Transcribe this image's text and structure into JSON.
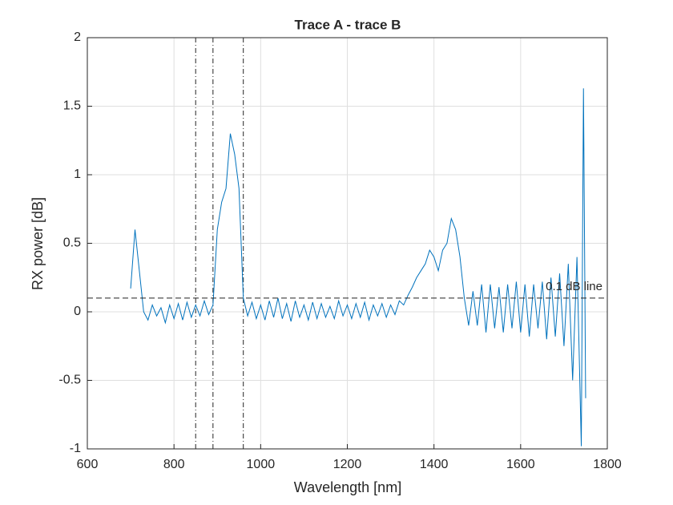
{
  "chart_data": {
    "type": "line",
    "title": "Trace A - trace B",
    "x_label": "Wavelength [nm]",
    "y_label": "RX power [dB]",
    "x": [
      700,
      710,
      720,
      730,
      740,
      750,
      760,
      770,
      780,
      790,
      800,
      810,
      820,
      830,
      840,
      850,
      860,
      870,
      880,
      890,
      900,
      910,
      920,
      930,
      940,
      950,
      960,
      970,
      980,
      990,
      1000,
      1010,
      1020,
      1030,
      1040,
      1050,
      1060,
      1070,
      1080,
      1090,
      1100,
      1110,
      1120,
      1130,
      1140,
      1150,
      1160,
      1170,
      1180,
      1190,
      1200,
      1210,
      1220,
      1230,
      1240,
      1250,
      1260,
      1270,
      1280,
      1290,
      1300,
      1310,
      1320,
      1330,
      1340,
      1350,
      1360,
      1370,
      1380,
      1390,
      1400,
      1410,
      1420,
      1430,
      1440,
      1450,
      1460,
      1470,
      1480,
      1490,
      1500,
      1510,
      1520,
      1530,
      1540,
      1550,
      1560,
      1570,
      1580,
      1590,
      1600,
      1610,
      1620,
      1630,
      1640,
      1650,
      1660,
      1670,
      1680,
      1690,
      1700,
      1710,
      1720,
      1730,
      1740,
      1745,
      1750
    ],
    "series": [
      {
        "name": "Trace A - trace B",
        "color": "#0072bd",
        "values": [
          0.17,
          0.6,
          0.3,
          0.0,
          -0.06,
          0.05,
          -0.03,
          0.03,
          -0.08,
          0.05,
          -0.05,
          0.06,
          -0.06,
          0.07,
          -0.04,
          0.05,
          -0.03,
          0.08,
          -0.02,
          0.05,
          0.6,
          0.8,
          0.9,
          1.3,
          1.15,
          0.9,
          0.1,
          -0.03,
          0.07,
          -0.05,
          0.05,
          -0.06,
          0.08,
          -0.04,
          0.1,
          -0.05,
          0.06,
          -0.07,
          0.08,
          -0.04,
          0.05,
          -0.06,
          0.07,
          -0.05,
          0.06,
          -0.04,
          0.04,
          -0.05,
          0.08,
          -0.03,
          0.05,
          -0.05,
          0.06,
          -0.04,
          0.07,
          -0.06,
          0.05,
          -0.03,
          0.06,
          -0.04,
          0.05,
          -0.02,
          0.08,
          0.05,
          0.12,
          0.18,
          0.25,
          0.3,
          0.35,
          0.45,
          0.4,
          0.3,
          0.45,
          0.5,
          0.68,
          0.6,
          0.4,
          0.1,
          -0.1,
          0.15,
          -0.1,
          0.2,
          -0.15,
          0.2,
          -0.12,
          0.18,
          -0.15,
          0.2,
          -0.12,
          0.22,
          -0.15,
          0.2,
          -0.18,
          0.2,
          -0.12,
          0.22,
          -0.2,
          0.25,
          -0.18,
          0.28,
          -0.25,
          0.35,
          -0.5,
          0.4,
          -0.98,
          1.63,
          -0.63
        ]
      }
    ],
    "vlines": [
      850,
      890,
      960
    ],
    "hline": {
      "value": 0.1,
      "label": "0.1 dB line"
    },
    "xlim": [
      600,
      1800
    ],
    "xticks": [
      600,
      800,
      1000,
      1200,
      1400,
      1600,
      1800
    ],
    "ylim": [
      -1,
      2
    ],
    "yticks": [
      -1,
      -0.5,
      0,
      0.5,
      1,
      1.5,
      2
    ],
    "grid": true
  }
}
